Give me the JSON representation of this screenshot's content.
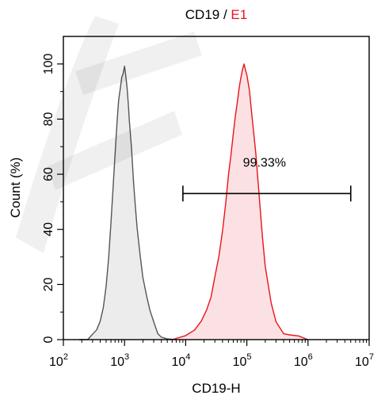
{
  "chart_data": {
    "type": "area",
    "title_parts": [
      {
        "text": "CD19",
        "color": "#000000"
      },
      {
        "text": " / ",
        "color": "#000000"
      },
      {
        "text": "E1",
        "color": "#e8141b"
      }
    ],
    "xlabel": "CD19-H",
    "ylabel": "Count  (%)",
    "x_scale": "log10",
    "xlim": [
      100,
      10000000
    ],
    "ylim": [
      0,
      110
    ],
    "x_ticks": [
      {
        "base": "10",
        "exp": "2",
        "value": 100
      },
      {
        "base": "10",
        "exp": "3",
        "value": 1000
      },
      {
        "base": "10",
        "exp": "4",
        "value": 10000
      },
      {
        "base": "10",
        "exp": "5",
        "value": 100000
      },
      {
        "base": "10",
        "exp": "6",
        "value": 1000000
      },
      {
        "base": "10",
        "exp": "7",
        "value": 10000000
      }
    ],
    "y_ticks": [
      "0",
      "20",
      "40",
      "60",
      "80",
      "100"
    ],
    "y_tick_values": [
      0,
      20,
      40,
      60,
      80,
      100
    ],
    "series": [
      {
        "key": "control",
        "line_color": "#555555",
        "fill_color": "#ececec",
        "x": [
          180,
          250,
          300,
          350,
          400,
          450,
          500,
          550,
          600,
          650,
          700,
          750,
          800,
          850,
          900,
          950,
          1000,
          1050,
          1100,
          1150,
          1200,
          1300,
          1400,
          1500,
          1600,
          1800,
          2000,
          2300,
          2600,
          3000,
          3500,
          4000,
          5000,
          7000
        ],
        "y": [
          0,
          0.5,
          2,
          4,
          7,
          12,
          20,
          30,
          42,
          55,
          67,
          78,
          86,
          91,
          95,
          97,
          100,
          96,
          92,
          86,
          80,
          70,
          58,
          48,
          40,
          30,
          22,
          15,
          10,
          6,
          3,
          1.5,
          0.5,
          0
        ]
      },
      {
        "key": "E1",
        "line_color": "#e8141b",
        "fill_color": "#fbe1e3",
        "x": [
          6000,
          10000,
          14000,
          18000,
          22000,
          26000,
          30000,
          35000,
          40000,
          45000,
          50000,
          55000,
          60000,
          65000,
          70000,
          75000,
          80000,
          85000,
          90000,
          95000,
          100000,
          110000,
          120000,
          140000,
          160000,
          180000,
          200000,
          250000,
          300000,
          400000,
          500000,
          700000,
          1000000
        ],
        "y": [
          0,
          1,
          3,
          6,
          10,
          15,
          22,
          30,
          40,
          50,
          60,
          68,
          75,
          82,
          87,
          91,
          95,
          98,
          100,
          97,
          96,
          90,
          82,
          68,
          52,
          38,
          27,
          14,
          7,
          3,
          1.5,
          0.5,
          0
        ]
      }
    ],
    "gate": {
      "label": "99.33%",
      "x_start": 9000,
      "x_end": 5000000,
      "y": 53
    }
  }
}
